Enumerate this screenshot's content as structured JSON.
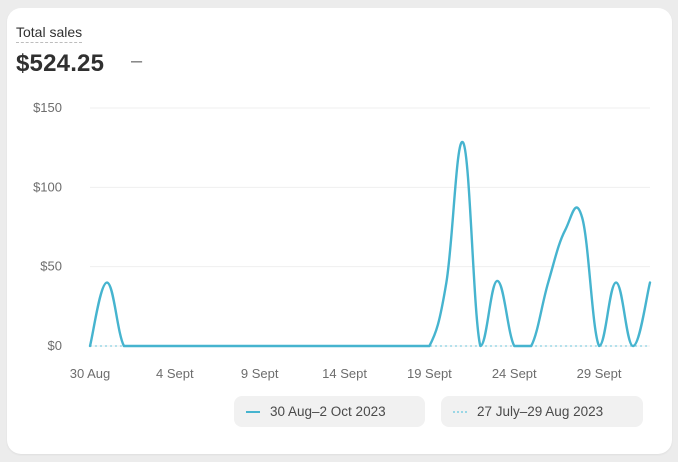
{
  "card": {
    "title": "Total sales",
    "total": "$524.25",
    "change": "–"
  },
  "chart_data": {
    "type": "line",
    "title": "",
    "xlabel": "",
    "ylabel": "",
    "ylim": [
      0,
      150
    ],
    "y_ticks": [
      "$0",
      "$50",
      "$100",
      "$150"
    ],
    "y_tick_values": [
      0,
      50,
      100,
      150
    ],
    "x_tick_labels": [
      "30 Aug",
      "4 Sept",
      "9 Sept",
      "14 Sept",
      "19 Sept",
      "24 Sept",
      "29 Sept"
    ],
    "x_tick_day_index": [
      0,
      5,
      10,
      15,
      20,
      25,
      30
    ],
    "x": [
      "30 Aug",
      "31 Aug",
      "1 Sept",
      "2 Sept",
      "3 Sept",
      "4 Sept",
      "5 Sept",
      "6 Sept",
      "7 Sept",
      "8 Sept",
      "9 Sept",
      "10 Sept",
      "11 Sept",
      "12 Sept",
      "13 Sept",
      "14 Sept",
      "15 Sept",
      "16 Sept",
      "17 Sept",
      "18 Sept",
      "19 Sept",
      "20 Sept",
      "21 Sept",
      "22 Sept",
      "23 Sept",
      "24 Sept",
      "25 Sept",
      "26 Sept",
      "27 Sept",
      "28 Sept",
      "29 Sept",
      "30 Sept",
      "1 Oct",
      "2 Oct"
    ],
    "grid": true,
    "series": [
      {
        "name": "30 Aug–2 Oct 2023",
        "color": "#46b4cf",
        "style": "solid",
        "values": [
          0,
          40,
          0,
          0,
          0,
          0,
          0,
          0,
          0,
          0,
          0,
          0,
          0,
          0,
          0,
          0,
          0,
          0,
          0,
          0,
          0,
          40,
          128,
          0,
          41,
          0,
          0,
          40,
          73,
          81,
          0,
          40,
          0,
          40
        ]
      },
      {
        "name": "27 July–29 Aug 2023",
        "color": "#9ad7e6",
        "style": "dotted",
        "values": [
          0,
          0,
          0,
          0,
          0,
          0,
          0,
          0,
          0,
          0,
          0,
          0,
          0,
          0,
          0,
          0,
          0,
          0,
          0,
          0,
          0,
          0,
          0,
          0,
          0,
          0,
          0,
          0,
          0,
          0,
          0,
          0,
          0,
          0
        ]
      }
    ]
  }
}
